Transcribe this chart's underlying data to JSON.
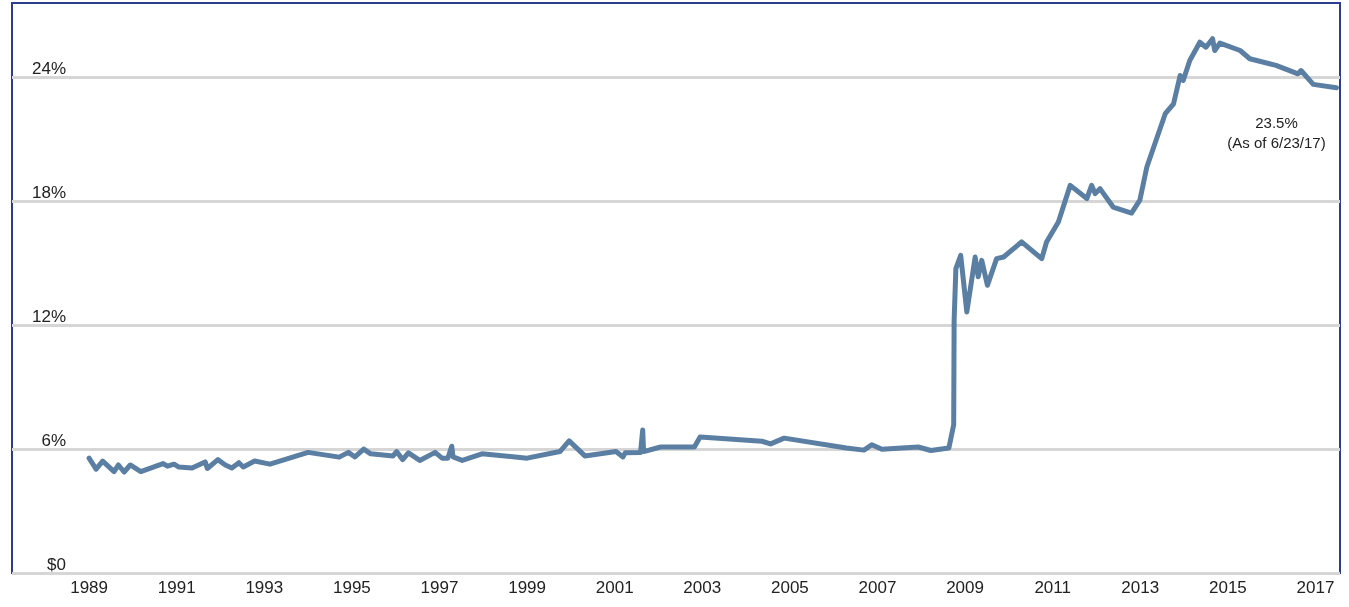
{
  "chart_data": {
    "type": "line",
    "x": [
      1989.0,
      1989.16,
      1989.31,
      1989.57,
      1989.67,
      1989.8,
      1989.94,
      1990.18,
      1990.69,
      1990.79,
      1990.94,
      1991.05,
      1991.35,
      1991.65,
      1991.7,
      1991.94,
      1992.11,
      1992.26,
      1992.42,
      1992.52,
      1992.78,
      1993.13,
      1994.0,
      1994.71,
      1994.92,
      1995.07,
      1995.27,
      1995.43,
      1995.94,
      1996.02,
      1996.16,
      1996.29,
      1996.55,
      1996.9,
      1997.06,
      1997.19,
      1997.28,
      1997.31,
      1997.52,
      1997.97,
      1999.0,
      1999.75,
      1999.96,
      2000.32,
      2001.03,
      2001.19,
      2001.24,
      2001.59,
      2001.64,
      2001.66,
      2002.05,
      2002.82,
      2002.95,
      2004.36,
      2004.56,
      2004.87,
      2006.29,
      2006.69,
      2006.87,
      2007.1,
      2007.93,
      2008.22,
      2008.63,
      2008.74,
      2008.75,
      2008.79,
      2008.9,
      2009.04,
      2009.23,
      2009.3,
      2009.38,
      2009.51,
      2009.72,
      2009.88,
      2010.29,
      2010.75,
      2010.86,
      2011.13,
      2011.4,
      2011.78,
      2011.89,
      2011.97,
      2012.08,
      2012.38,
      2012.8,
      2012.99,
      2013.15,
      2013.57,
      2013.76,
      2013.91,
      2013.98,
      2014.13,
      2014.36,
      2014.5,
      2014.65,
      2014.7,
      2014.82,
      2015.28,
      2015.5,
      2016.1,
      2016.6,
      2016.67,
      2016.95,
      2017.48
    ],
    "series": [
      {
        "color": "#5b7fa3",
        "values": [
          5.56,
          5.03,
          5.42,
          4.91,
          5.23,
          4.89,
          5.23,
          4.91,
          5.3,
          5.17,
          5.27,
          5.13,
          5.08,
          5.38,
          5.06,
          5.49,
          5.23,
          5.08,
          5.34,
          5.13,
          5.42,
          5.27,
          5.84,
          5.61,
          5.84,
          5.62,
          6.0,
          5.77,
          5.67,
          5.88,
          5.49,
          5.82,
          5.45,
          5.84,
          5.56,
          5.56,
          6.14,
          5.62,
          5.45,
          5.77,
          5.56,
          5.88,
          6.4,
          5.67,
          5.88,
          5.62,
          5.82,
          5.84,
          6.92,
          5.88,
          6.1,
          6.1,
          6.58,
          6.38,
          6.25,
          6.53,
          6.05,
          5.95,
          6.21,
          5.99,
          6.1,
          5.93,
          6.05,
          7.18,
          12.24,
          14.74,
          15.38,
          12.64,
          15.3,
          14.34,
          15.14,
          13.93,
          15.22,
          15.3,
          16.03,
          15.22,
          16.03,
          17.0,
          18.77,
          18.13,
          18.77,
          18.37,
          18.61,
          17.72,
          17.43,
          18.05,
          19.66,
          22.24,
          22.72,
          24.09,
          23.85,
          24.82,
          25.7,
          25.46,
          25.87,
          25.3,
          25.66,
          25.3,
          24.9,
          24.58,
          24.17,
          24.33,
          23.66,
          23.5
        ]
      }
    ],
    "xlim": [
      1987.24,
      2017.56
    ],
    "xticks": [
      1989,
      1991,
      1993,
      1995,
      1997,
      1999,
      2001,
      2003,
      2005,
      2007,
      2009,
      2011,
      2013,
      2015,
      2017
    ],
    "ylim": [
      0,
      27.6
    ],
    "yticks": [
      {
        "value": 0,
        "label": "$0"
      },
      {
        "value": 6,
        "label": "6%"
      },
      {
        "value": 12,
        "label": "12%"
      },
      {
        "value": 18,
        "label": "18%"
      },
      {
        "value": 24,
        "label": "24%"
      }
    ],
    "grid": "y",
    "marker": "none",
    "line_style": "solid",
    "annotations": [
      {
        "text": "23.5%\n(As of 6/23/17)",
        "x": 2017.48,
        "y": 23.5
      }
    ]
  }
}
